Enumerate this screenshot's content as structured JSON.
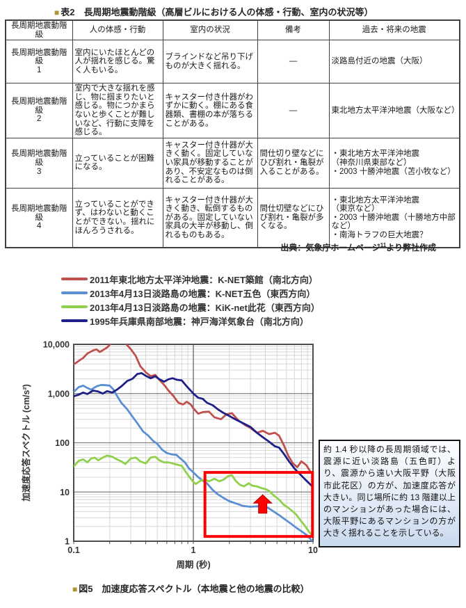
{
  "table_caption": {
    "marker": "■",
    "text": "表2　長周期地震動階級（高層ビルにおける人の体感・行動、室内の状況等）"
  },
  "table": {
    "headers": [
      "長周期地震動階級",
      "人の体感・行動",
      "室内の状況",
      "備考",
      "過去・将来の地震"
    ],
    "rows": [
      {
        "rank_label": "長周期地震動階級",
        "rank_no": "1",
        "taikan": "室内にいたほとんどの人が揺れを感じる。驚く人もいる。",
        "room": "ブラインドなど吊り下げものが大きく揺れる。",
        "note": "―",
        "quakes": "淡路島付近の地震（大阪）"
      },
      {
        "rank_label": "長周期地震動階級",
        "rank_no": "2",
        "taikan": "室内で大きな揺れを感じ、物に掴まりたいと感じる。物につかまらないと歩くことが難しいなど、行動に支障を感じる。",
        "room": "キャスター付き什器がわずかに動く。棚にある食器類、書棚の本が落ちることがある。",
        "note": "―",
        "quakes": "東北地方太平洋沖地震（大阪など）"
      },
      {
        "rank_label": "長周期地震動階級",
        "rank_no": "3",
        "taikan": "立っていることが困難になる。",
        "room": "キャスター付き什器が大きく動く。固定していない家具が移動することがあり、不安定なものは倒れることがある。",
        "note": "間仕切り壁などにひび割れ・亀裂が入ることがある。",
        "quakes": "・東北地方太平洋沖地震\n（神奈川県東部など）\n・2003 十勝沖地震（苫小牧など）"
      },
      {
        "rank_label": "長周期地震動階級",
        "rank_no": "4",
        "taikan": "立っていることができず、はわないと動くことができない。揺れにほんろうされる。",
        "room": "キャスター付き什器が大きく動き、転倒するものがある。固定していない家具の大半が移動し、倒れるものもある。",
        "note": "間仕切壁などにひび割れ・亀裂が多くなる。",
        "quakes": "・東北地方太平洋沖地震\n（東京など）\n・2003 十勝沖地震（十勝地方中部など）\n・南海トラフの巨大地震？"
      }
    ]
  },
  "source_note": {
    "prefix": "出典：気象庁ホームページ",
    "sup": "11",
    "suffix": "より弊社作成"
  },
  "callout": {
    "text": "約 1.4 秒以降の長周期領域では、震源に近い淡路島（五色町）より、震源から遠い大阪平野（大阪市此花区）の方が、加速度応答が大きい。同じ場所に約 13 階建以上のマンションがあった場合には、大阪平野にあるマンションの方が大きく揺れることを示している。"
  },
  "figure_caption": {
    "marker": "■",
    "text": "図5　加速度応答スペクトル（本地震と他の地震の比較）"
  },
  "chart_data": {
    "type": "line",
    "xlabel": "周期 (秒)",
    "ylabel": "加速度応答スペクトル (cm/s²)",
    "xscale": "log",
    "yscale": "log",
    "xlim": [
      0.1,
      10
    ],
    "ylim": [
      1,
      10000
    ],
    "x_tick_values": [
      0.1,
      1,
      10
    ],
    "x_tick_labels": [
      "0.1",
      "1",
      "10"
    ],
    "y_tick_values": [
      1,
      10,
      100,
      1000,
      10000
    ],
    "y_tick_labels": [
      "1",
      "10",
      "100",
      "1,000",
      "10,000"
    ],
    "grid": true,
    "legend_position": "above",
    "series": [
      {
        "name": "2011年東北地方太平洋沖地震：K-NET築館（南北方向）",
        "color": "#C0504D",
        "points": [
          [
            0.1,
            3900
          ],
          [
            0.11,
            4600
          ],
          [
            0.12,
            5300
          ],
          [
            0.13,
            6500
          ],
          [
            0.145,
            7500
          ],
          [
            0.155,
            7900
          ],
          [
            0.165,
            7000
          ],
          [
            0.175,
            7600
          ],
          [
            0.19,
            8600
          ],
          [
            0.2,
            9800
          ],
          [
            0.21,
            11000
          ],
          [
            0.24,
            11500
          ],
          [
            0.27,
            10500
          ],
          [
            0.3,
            8000
          ],
          [
            0.33,
            5800
          ],
          [
            0.36,
            3600
          ],
          [
            0.4,
            2700
          ],
          [
            0.44,
            2250
          ],
          [
            0.48,
            2400
          ],
          [
            0.52,
            1900
          ],
          [
            0.57,
            1500
          ],
          [
            0.62,
            1150
          ],
          [
            0.68,
            900
          ],
          [
            0.75,
            650
          ],
          [
            0.82,
            600
          ],
          [
            0.88,
            680
          ],
          [
            0.95,
            600
          ],
          [
            1.0,
            500
          ],
          [
            1.1,
            390
          ],
          [
            1.2,
            420
          ],
          [
            1.35,
            430
          ],
          [
            1.5,
            330
          ],
          [
            1.7,
            300
          ],
          [
            1.9,
            380
          ],
          [
            2.1,
            400
          ],
          [
            2.4,
            280
          ],
          [
            2.7,
            230
          ],
          [
            3.0,
            200
          ],
          [
            3.4,
            160
          ],
          [
            3.8,
            175
          ],
          [
            4.3,
            150
          ],
          [
            4.8,
            160
          ],
          [
            5.2,
            140
          ],
          [
            5.7,
            90
          ],
          [
            6.2,
            55
          ],
          [
            6.8,
            38
          ],
          [
            7.4,
            32
          ],
          [
            8.0,
            42
          ],
          [
            8.8,
            35
          ],
          [
            9.5,
            26
          ],
          [
            10,
            22
          ]
        ]
      },
      {
        "name": "2013年4月13日淡路島の地震：K-NET五色（東西方向）",
        "color": "#5B8FD4",
        "points": [
          [
            0.1,
            1080
          ],
          [
            0.11,
            1350
          ],
          [
            0.12,
            1450
          ],
          [
            0.13,
            1300
          ],
          [
            0.14,
            1200
          ],
          [
            0.155,
            1400
          ],
          [
            0.17,
            1500
          ],
          [
            0.185,
            1480
          ],
          [
            0.2,
            1450
          ],
          [
            0.215,
            1200
          ],
          [
            0.23,
            900
          ],
          [
            0.25,
            650
          ],
          [
            0.28,
            480
          ],
          [
            0.31,
            340
          ],
          [
            0.34,
            250
          ],
          [
            0.38,
            170
          ],
          [
            0.42,
            140
          ],
          [
            0.46,
            110
          ],
          [
            0.5,
            95
          ],
          [
            0.55,
            72
          ],
          [
            0.6,
            62
          ],
          [
            0.66,
            58
          ],
          [
            0.72,
            57
          ],
          [
            0.78,
            48
          ],
          [
            0.85,
            40
          ],
          [
            0.92,
            30
          ],
          [
            1.0,
            25
          ],
          [
            1.1,
            20
          ],
          [
            1.2,
            17
          ],
          [
            1.3,
            15
          ],
          [
            1.45,
            11
          ],
          [
            1.6,
            9
          ],
          [
            1.8,
            7.5
          ],
          [
            2.0,
            6.5
          ],
          [
            2.3,
            5.8
          ],
          [
            2.6,
            5.2
          ],
          [
            3.0,
            5.0
          ],
          [
            3.4,
            5.1
          ],
          [
            3.8,
            5.0
          ],
          [
            4.2,
            4.8
          ],
          [
            4.7,
            4.0
          ],
          [
            5.2,
            3.4
          ],
          [
            5.8,
            2.8
          ],
          [
            6.5,
            2.3
          ],
          [
            7.2,
            1.9
          ],
          [
            8.0,
            1.6
          ],
          [
            8.8,
            1.35
          ],
          [
            9.4,
            1.15
          ],
          [
            10,
            0.95
          ]
        ]
      },
      {
        "name": "2013年4月13日淡路島の地震：KiK-net此花（東西方向）",
        "color": "#8FD04C",
        "points": [
          [
            0.1,
            33
          ],
          [
            0.11,
            43
          ],
          [
            0.12,
            46
          ],
          [
            0.13,
            40
          ],
          [
            0.14,
            48
          ],
          [
            0.15,
            50
          ],
          [
            0.16,
            44
          ],
          [
            0.175,
            50
          ],
          [
            0.19,
            55
          ],
          [
            0.21,
            52
          ],
          [
            0.23,
            46
          ],
          [
            0.25,
            42
          ],
          [
            0.27,
            37
          ],
          [
            0.3,
            48
          ],
          [
            0.33,
            50
          ],
          [
            0.36,
            42
          ],
          [
            0.4,
            38
          ],
          [
            0.44,
            50
          ],
          [
            0.48,
            52
          ],
          [
            0.52,
            44
          ],
          [
            0.57,
            40
          ],
          [
            0.62,
            40
          ],
          [
            0.67,
            38
          ],
          [
            0.73,
            36
          ],
          [
            0.8,
            34
          ],
          [
            0.87,
            25
          ],
          [
            0.93,
            20
          ],
          [
            1.0,
            16
          ],
          [
            1.05,
            14.5
          ],
          [
            1.15,
            17
          ],
          [
            1.25,
            18
          ],
          [
            1.35,
            16.5
          ],
          [
            1.5,
            18.5
          ],
          [
            1.65,
            16.5
          ],
          [
            1.8,
            18
          ],
          [
            1.95,
            21
          ],
          [
            2.1,
            22
          ],
          [
            2.25,
            17
          ],
          [
            2.45,
            14
          ],
          [
            2.65,
            13
          ],
          [
            2.9,
            15
          ],
          [
            3.1,
            13.5
          ],
          [
            3.4,
            13
          ],
          [
            3.7,
            12
          ],
          [
            4.0,
            11.5
          ],
          [
            4.3,
            10.5
          ],
          [
            4.7,
            8.5
          ],
          [
            5.2,
            7
          ],
          [
            5.7,
            5.5
          ],
          [
            6.2,
            4.8
          ],
          [
            6.8,
            4.0
          ],
          [
            7.3,
            3.4
          ],
          [
            7.9,
            2.6
          ],
          [
            8.5,
            2.1
          ],
          [
            9.2,
            1.6
          ],
          [
            10,
            1.25
          ]
        ]
      },
      {
        "name": "1995年兵庫県南部地震：神戸海洋気象台（南北方向）",
        "color": "#1D2088",
        "points": [
          [
            0.1,
            880
          ],
          [
            0.11,
            950
          ],
          [
            0.12,
            1050
          ],
          [
            0.13,
            980
          ],
          [
            0.145,
            1150
          ],
          [
            0.16,
            1100
          ],
          [
            0.175,
            1000
          ],
          [
            0.19,
            1120
          ],
          [
            0.21,
            1050
          ],
          [
            0.23,
            1200
          ],
          [
            0.25,
            1400
          ],
          [
            0.28,
            1800
          ],
          [
            0.31,
            2000
          ],
          [
            0.34,
            2500
          ],
          [
            0.37,
            2600
          ],
          [
            0.4,
            2300
          ],
          [
            0.44,
            2050
          ],
          [
            0.48,
            2250
          ],
          [
            0.52,
            1950
          ],
          [
            0.57,
            1750
          ],
          [
            0.62,
            1950
          ],
          [
            0.67,
            2050
          ],
          [
            0.73,
            1900
          ],
          [
            0.8,
            1850
          ],
          [
            0.88,
            1400
          ],
          [
            0.95,
            1150
          ],
          [
            1.0,
            1000
          ],
          [
            1.1,
            820
          ],
          [
            1.2,
            780
          ],
          [
            1.3,
            650
          ],
          [
            1.45,
            580
          ],
          [
            1.6,
            480
          ],
          [
            1.8,
            400
          ],
          [
            2.0,
            350
          ],
          [
            2.3,
            290
          ],
          [
            2.6,
            250
          ],
          [
            3.0,
            210
          ],
          [
            3.4,
            160
          ],
          [
            3.8,
            130
          ],
          [
            4.3,
            105
          ],
          [
            4.8,
            85
          ],
          [
            5.2,
            80
          ],
          [
            5.7,
            60
          ],
          [
            6.3,
            42
          ],
          [
            7.0,
            30
          ],
          [
            7.8,
            23
          ],
          [
            8.6,
            18
          ],
          [
            9.3,
            15
          ],
          [
            10,
            12.5
          ]
        ]
      }
    ],
    "annotations": {
      "highlight_rect": {
        "x1": 1.25,
        "y1": 1.25,
        "x2": 9.9,
        "y2": 25,
        "color": "#FF0000"
      },
      "arrow_up": {
        "x": 3.8,
        "y_from": 3.7,
        "y_to": 8.8,
        "color": "#FF0000"
      }
    }
  }
}
